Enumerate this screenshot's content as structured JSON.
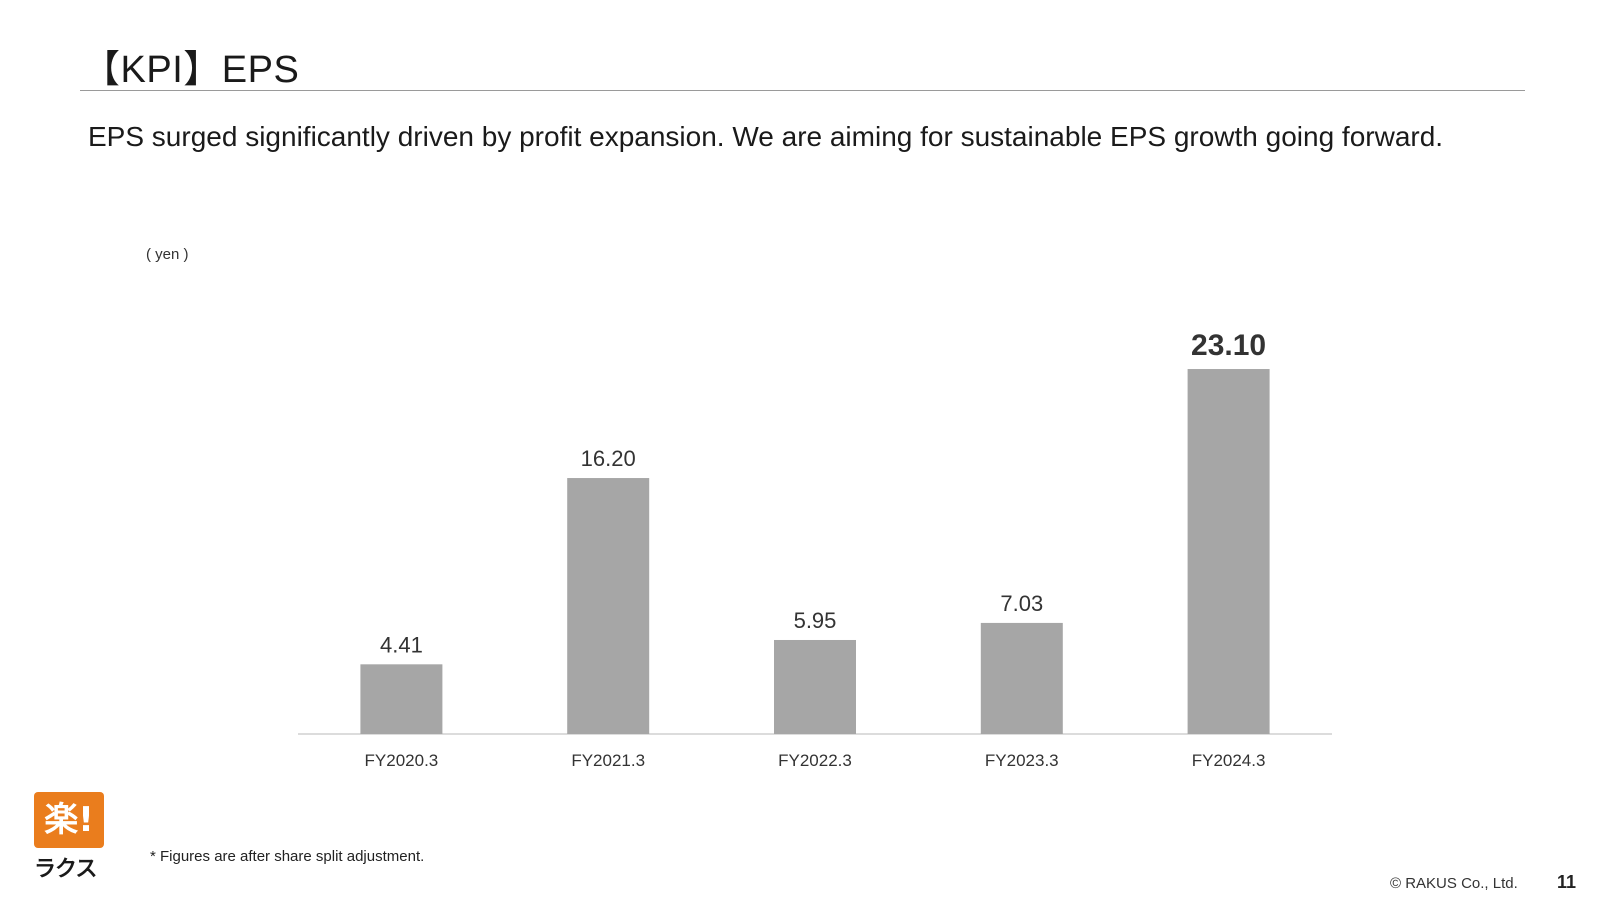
{
  "slide": {
    "title": "【KPI】EPS",
    "subtitle": "EPS surged significantly driven by profit expansion. We are aiming for sustainable EPS growth going forward.",
    "footnote": "* Figures are after share split adjustment.",
    "copyright": "© RAKUS Co., Ltd.",
    "page_number": "11",
    "logo": {
      "mark": "楽!",
      "kana": "ラクス"
    }
  },
  "colors": {
    "bar": "#a6a6a6",
    "axis": "#d0d0d0",
    "text": "#222222",
    "logo_orange": "#ea7d1d"
  },
  "chart_data": {
    "type": "bar",
    "title": "",
    "unit_label": "( yen )",
    "xlabel": "",
    "ylabel": "",
    "categories": [
      "FY2020.3",
      "FY2021.3",
      "FY2022.3",
      "FY2023.3",
      "FY2024.3"
    ],
    "values": [
      4.41,
      16.2,
      5.95,
      7.03,
      23.1
    ],
    "value_labels": [
      "4.41",
      "16.20",
      "5.95",
      "7.03",
      "23.10"
    ],
    "highlighted_index": 4,
    "ylim": [
      0,
      26
    ],
    "grid": false,
    "legend": "none"
  }
}
